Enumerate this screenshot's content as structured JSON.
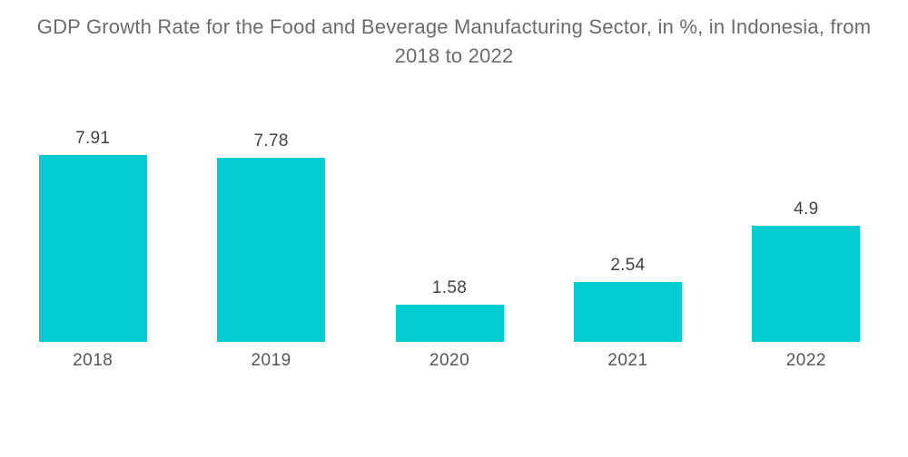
{
  "chart_data": {
    "type": "bar",
    "title": "GDP Growth Rate for the Food and Beverage Manufacturing Sector, in %, in Indonesia, from 2018 to 2022",
    "categories": [
      "2018",
      "2019",
      "2020",
      "2021",
      "2022"
    ],
    "values": [
      7.91,
      7.78,
      1.58,
      2.54,
      4.9
    ],
    "value_labels": [
      "7.91",
      "7.78",
      "1.58",
      "2.54",
      "4.9"
    ],
    "xlabel": "",
    "ylabel": "",
    "ylim": [
      0,
      8.6
    ],
    "grid": false,
    "legend": "none",
    "axes_visible": false,
    "bar_color": "#00CCD2"
  },
  "colors": {
    "background": "#FFFFFF",
    "title_text": "#6B6C6E",
    "value_text": "#414244",
    "category_text": "#55565A",
    "bar": "#00CCD2"
  }
}
